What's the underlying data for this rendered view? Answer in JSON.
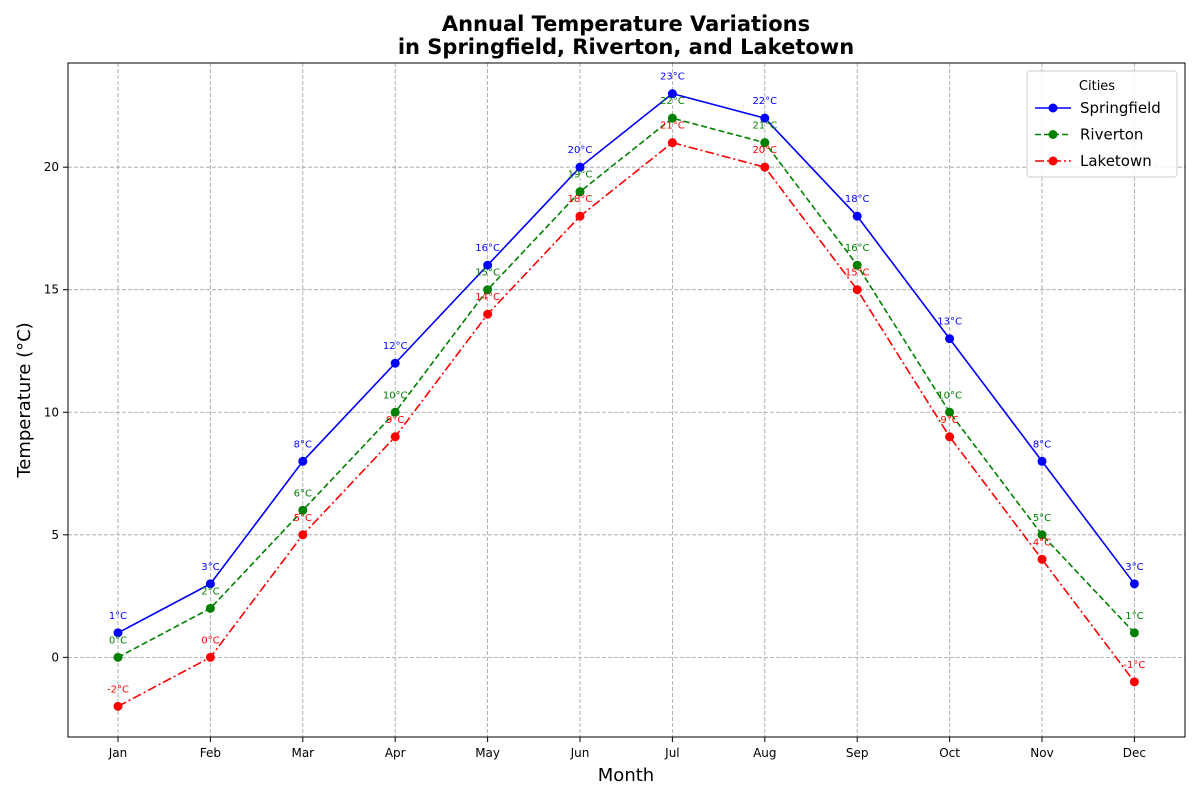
{
  "chart_data": {
    "type": "line",
    "title": [
      "Annual Temperature Variations",
      "in Springfield, Riverton, and Laketown"
    ],
    "xlabel": "Month",
    "ylabel": "Temperature (°C)",
    "categories": [
      "Jan",
      "Feb",
      "Mar",
      "Apr",
      "May",
      "Jun",
      "Jul",
      "Aug",
      "Sep",
      "Oct",
      "Nov",
      "Dec"
    ],
    "ylim": [
      -3.25,
      24.25
    ],
    "yticks": [
      0,
      5,
      10,
      15,
      20
    ],
    "grid": true,
    "legend": {
      "title": "Cities",
      "placement": "top-right"
    },
    "data_label_unit": "°C",
    "series": [
      {
        "name": "Springfield",
        "color": "#0000ff",
        "line_style": "solid",
        "values": [
          1,
          3,
          8,
          12,
          16,
          20,
          23,
          22,
          18,
          13,
          8,
          3
        ]
      },
      {
        "name": "Riverton",
        "color": "#008000",
        "line_style": "dashed",
        "values": [
          0,
          2,
          6,
          10,
          15,
          19,
          22,
          21,
          16,
          10,
          5,
          1
        ]
      },
      {
        "name": "Laketown",
        "color": "#ff0000",
        "line_style": "dashdot",
        "values": [
          -2,
          0,
          5,
          9,
          14,
          18,
          21,
          20,
          15,
          9,
          4,
          -1
        ]
      }
    ]
  }
}
